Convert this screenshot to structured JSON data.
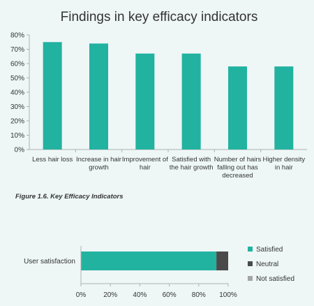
{
  "figure_caption": "Figure 1.6. Key Efficacy Indicators",
  "colors": {
    "teal": "#22b2a0",
    "dark": "#4a4a4a",
    "grey": "#a5a5a5",
    "axis": "#b0b0b0"
  },
  "chart_data": [
    {
      "type": "bar",
      "title": "Findings in key efficacy indicators",
      "categories": [
        [
          "Less hair loss"
        ],
        [
          "Increase in hair",
          "growth"
        ],
        [
          "Improvement of",
          "hair"
        ],
        [
          "Satisfied with",
          "the hair growth"
        ],
        [
          "Number of hairs",
          "falling out has",
          "decreased"
        ],
        [
          "Higher density",
          "in hair"
        ]
      ],
      "values": [
        75,
        74,
        67,
        67,
        58,
        58
      ],
      "ylim": [
        0,
        80
      ],
      "yticks": [
        "0%",
        "10%",
        "20%",
        "30%",
        "40%",
        "50%",
        "60%",
        "70%",
        "80%"
      ],
      "grid": false,
      "xlabel": "",
      "ylabel": ""
    },
    {
      "type": "bar",
      "orientation": "horizontal",
      "stacked": true,
      "categories": [
        "User satisfaction"
      ],
      "series": [
        {
          "name": "Satisfied",
          "values": [
            92
          ]
        },
        {
          "name": "Neutral",
          "values": [
            8
          ]
        },
        {
          "name": "Not satisfied",
          "values": [
            0
          ]
        }
      ],
      "xlim": [
        0,
        100
      ],
      "xticks": [
        "0%",
        "20%",
        "40%",
        "60%",
        "80%",
        "100%"
      ],
      "legend": "right",
      "grid": false
    }
  ]
}
